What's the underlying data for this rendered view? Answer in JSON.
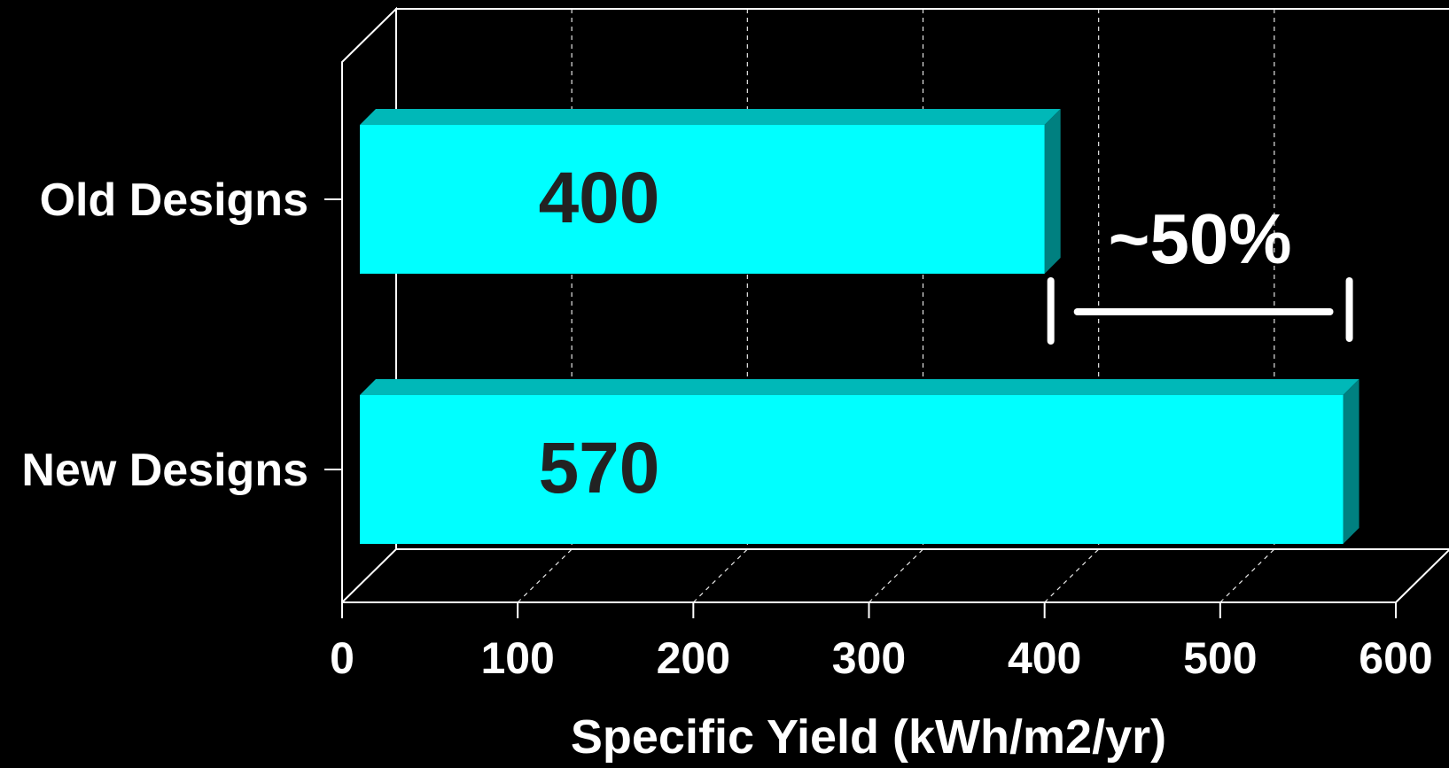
{
  "colors": {
    "background": "#000000",
    "axis": "#ffffff",
    "bar_front": "#00ffff",
    "bar_top": "#00b8b8",
    "bar_side": "#008080",
    "bar_label": "#222222",
    "text": "#ffffff"
  },
  "chart_data": {
    "type": "bar",
    "orientation": "horizontal",
    "style": "3d",
    "categories": [
      "Old Designs",
      "New Designs"
    ],
    "values": [
      400,
      570
    ],
    "data_labels": [
      "400",
      "570"
    ],
    "xlabel": "Specific Yield (kWh/m2/yr)",
    "ylabel": "",
    "xlim": [
      0,
      600
    ],
    "x_ticks": [
      0,
      100,
      200,
      300,
      400,
      500,
      600
    ],
    "grid": "vertical dashed",
    "annotation": {
      "text": "~50%",
      "from": 400,
      "to": 570
    }
  }
}
